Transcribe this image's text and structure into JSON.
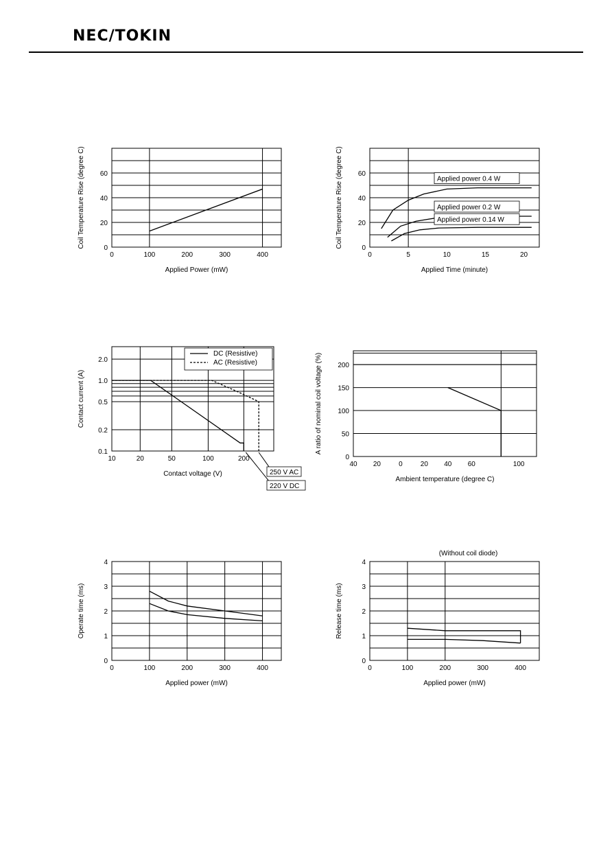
{
  "header": {
    "brand": "NEC/TOKIN"
  },
  "chart_data": [
    {
      "id": "c1",
      "type": "line",
      "xlabel": "Applied Power (mW)",
      "ylabel": "Coil Temperature Rise (degree C)",
      "xlim": [
        0,
        450
      ],
      "ylim": [
        0,
        80
      ],
      "xticks": [
        0,
        100,
        200,
        300,
        400
      ],
      "yticks": [
        0,
        20,
        40,
        60
      ],
      "series": [
        {
          "x": [
            100,
            400
          ],
          "y": [
            13,
            47
          ]
        }
      ]
    },
    {
      "id": "c2",
      "type": "line",
      "xlabel": "Applied Time (minute)",
      "ylabel": "Coil Temperature Rise (degree C)",
      "xlim": [
        0,
        22
      ],
      "ylim": [
        0,
        80
      ],
      "xticks": [
        0,
        5,
        10,
        15,
        20
      ],
      "yticks": [
        0,
        20,
        40,
        60
      ],
      "series": [
        {
          "name": "Applied power 0.4 W",
          "x": [
            1.5,
            3,
            5,
            7,
            10,
            14,
            21
          ],
          "y": [
            15,
            30,
            38,
            43,
            47,
            48,
            48
          ]
        },
        {
          "name": "Applied power 0.2 W",
          "x": [
            2.3,
            4,
            6,
            9,
            14,
            21
          ],
          "y": [
            8,
            17,
            21,
            24,
            25,
            25
          ]
        },
        {
          "name": "Applied power 0.14 W",
          "x": [
            2.8,
            4.5,
            6.5,
            9,
            14,
            21
          ],
          "y": [
            5,
            11,
            14,
            15.5,
            16,
            16
          ]
        }
      ]
    },
    {
      "id": "c3",
      "type": "line",
      "xlabel": "Contact voltage (V)",
      "ylabel": "Contact current (A)",
      "xlim": [
        0,
        230
      ],
      "xticks": [
        0,
        20,
        50,
        100,
        200
      ],
      "xtick_labels": [
        "10",
        "20",
        "50",
        "100",
        "200"
      ],
      "yticks": [
        0.1,
        0.2,
        0.5,
        1.0,
        2.0
      ],
      "ytick_labels": [
        "0.1",
        "0.2",
        "0.5",
        "1.0",
        "2.0"
      ],
      "y_scale": "log",
      "legend_position": "top-right",
      "series": [
        {
          "name": "DC (Resistive)",
          "x": [
            0,
            30,
            190,
            200,
            200
          ],
          "y": [
            1.0,
            1.0,
            0.13,
            0.13,
            0.1
          ]
        },
        {
          "name": "AC (Resistive)",
          "x": [
            0,
            65,
            110,
            180,
            215,
            215
          ],
          "y": [
            1.0,
            1.0,
            1.0,
            0.7,
            0.5,
            0.1
          ]
        }
      ],
      "annotations": [
        "250 V AC",
        "220 V DC"
      ]
    },
    {
      "id": "c4",
      "type": "line",
      "xlabel": "Ambient temperature (degree C)",
      "ylabel": "A ratio of nominal coil voltage (%)",
      "xlim": [
        -40,
        115
      ],
      "ylim": [
        0,
        230
      ],
      "xticks": [
        -40,
        -20,
        0,
        20,
        40,
        60,
        100
      ],
      "xtick_labels": [
        "40",
        "20",
        "0",
        "20",
        "40",
        "60",
        "100"
      ],
      "yticks": [
        0,
        50,
        100,
        150,
        200
      ],
      "series": [
        {
          "x": [
            40,
            85,
            85
          ],
          "y": [
            150,
            100,
            0
          ]
        }
      ]
    },
    {
      "id": "c5",
      "type": "line",
      "xlabel": "Applied power (mW)",
      "ylabel": "Operate time (ms)",
      "xlim": [
        0,
        450
      ],
      "ylim": [
        0,
        4
      ],
      "xticks": [
        0,
        100,
        200,
        300,
        400
      ],
      "yticks": [
        0,
        1,
        2,
        3,
        4
      ],
      "series": [
        {
          "x": [
            100,
            150,
            200,
            300,
            400
          ],
          "y": [
            2.8,
            2.4,
            2.2,
            2.0,
            1.8
          ]
        },
        {
          "x": [
            100,
            150,
            200,
            300,
            400
          ],
          "y": [
            2.3,
            2.0,
            1.85,
            1.7,
            1.6
          ]
        }
      ]
    },
    {
      "id": "c6",
      "type": "line",
      "title": "(Without coil diode)",
      "xlabel": "Applied power (mW)",
      "ylabel": "Release time (ms)",
      "xlim": [
        0,
        450
      ],
      "ylim": [
        0,
        4
      ],
      "xticks": [
        0,
        100,
        200,
        300,
        400
      ],
      "yticks": [
        0,
        1,
        2,
        3,
        4
      ],
      "series": [
        {
          "x": [
            100,
            200,
            300,
            400,
            400
          ],
          "y": [
            1.3,
            1.2,
            1.2,
            1.2,
            0.7
          ]
        },
        {
          "x": [
            100,
            200,
            300,
            400
          ],
          "y": [
            0.85,
            0.85,
            0.8,
            0.7
          ]
        }
      ]
    }
  ]
}
